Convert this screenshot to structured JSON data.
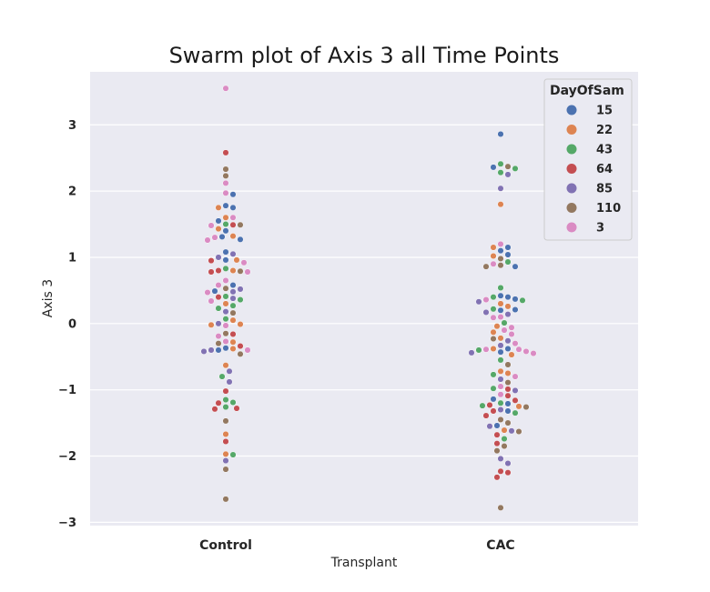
{
  "chart_data": {
    "type": "scatter",
    "subtype": "swarm",
    "title": "Swarm plot of Axis 3 all Time Points",
    "xlabel": "Transplant",
    "ylabel": "Axis 3",
    "categories": [
      "Control",
      "CAC"
    ],
    "ylim": [
      -3.05,
      3.8
    ],
    "yticks": [
      -3,
      -2,
      -1,
      0,
      1,
      2,
      3
    ],
    "ytick_labels": [
      "−3",
      "−2",
      "−1",
      "0",
      "1",
      "2",
      "3"
    ],
    "grid": true,
    "background": "#eaeaf2",
    "legend": {
      "title": "DayOfSam",
      "placement": "top-right",
      "entries": [
        {
          "label": "15",
          "color": "#4c72b0"
        },
        {
          "label": "22",
          "color": "#dd8452"
        },
        {
          "label": "43",
          "color": "#55a868"
        },
        {
          "label": "64",
          "color": "#c44e52"
        },
        {
          "label": "85",
          "color": "#8172b3"
        },
        {
          "label": "110",
          "color": "#937860"
        },
        {
          "label": "3",
          "color": "#da8bc3"
        }
      ]
    },
    "series": [
      {
        "name": "15",
        "Control": [
          1.95,
          1.78,
          1.75,
          1.55,
          1.4,
          1.31,
          1.27,
          1.08,
          0.96,
          0.58,
          0.49,
          -0.37,
          -0.4
        ],
        "CAC": [
          2.86,
          2.36,
          1.15,
          1.1,
          1.04,
          0.86,
          0.42,
          0.4,
          0.37,
          0.21,
          0.2,
          -0.38,
          -0.43,
          -1.14,
          -1.21,
          -1.32,
          -1.54
        ]
      },
      {
        "name": "22",
        "Control": [
          1.75,
          1.6,
          1.43,
          1.32,
          0.96,
          0.8,
          0.3,
          0.05,
          -0.01,
          -0.02,
          -0.28,
          -0.38,
          -0.63,
          -1.67,
          -1.97
        ],
        "CAC": [
          1.8,
          1.15,
          1.02,
          0.3,
          0.26,
          -0.04,
          -0.13,
          -0.22,
          -0.38,
          -0.47,
          -0.72,
          -0.75,
          -1.25,
          -1.61
        ]
      },
      {
        "name": "43",
        "Control": [
          1.5,
          0.83,
          0.41,
          0.36,
          0.27,
          0.23,
          0.07,
          -0.8,
          -1.15,
          -1.19,
          -1.26,
          -1.98
        ],
        "CAC": [
          2.41,
          2.28,
          2.34,
          0.93,
          0.54,
          0.4,
          0.35,
          0.22,
          0.01,
          -0.4,
          -0.55,
          -0.77,
          -0.98,
          -1.2,
          -1.24,
          -1.35,
          -1.74
        ]
      },
      {
        "name": "64",
        "Control": [
          2.58,
          1.49,
          0.95,
          0.8,
          0.78,
          0.4,
          -0.16,
          -0.34,
          -1.02,
          -1.2,
          -1.28,
          -1.29,
          -1.78
        ],
        "CAC": [
          -0.99,
          -1.09,
          -1.16,
          -1.23,
          -1.32,
          -1.39,
          -1.68,
          -1.81,
          -2.25,
          -2.23,
          -2.32
        ]
      },
      {
        "name": "85",
        "Control": [
          1.05,
          1.0,
          0.52,
          0.48,
          0.38,
          0.18,
          0.0,
          -0.4,
          -0.42,
          -0.72,
          -0.88,
          -2.07
        ],
        "CAC": [
          2.25,
          2.04,
          0.33,
          0.17,
          0.14,
          -0.26,
          -0.33,
          -0.44,
          -0.84,
          -1.01,
          -1.3,
          -1.55,
          -1.62,
          -2.04,
          -2.11
        ]
      },
      {
        "name": "110",
        "Control": [
          2.33,
          2.23,
          1.49,
          0.79,
          0.53,
          0.16,
          -0.15,
          -0.3,
          -0.46,
          -1.47,
          -2.2,
          -2.65
        ],
        "CAC": [
          2.37,
          0.98,
          0.88,
          0.86,
          -0.23,
          -0.62,
          -0.89,
          -1.26,
          -1.45,
          -1.5,
          -1.63,
          -1.85,
          -1.92,
          -2.78
        ]
      },
      {
        "name": "3",
        "Control": [
          3.55,
          2.12,
          1.97,
          1.6,
          1.48,
          1.3,
          1.26,
          0.92,
          0.78,
          0.65,
          0.58,
          0.47,
          0.34,
          -0.03,
          -0.19,
          -0.27,
          -0.4
        ],
        "CAC": [
          1.2,
          0.9,
          0.36,
          0.1,
          0.09,
          -0.06,
          -0.1,
          -0.16,
          -0.3,
          -0.39,
          -0.39,
          -0.42,
          -0.45,
          -0.8,
          -0.95,
          -1.07
        ]
      }
    ]
  }
}
